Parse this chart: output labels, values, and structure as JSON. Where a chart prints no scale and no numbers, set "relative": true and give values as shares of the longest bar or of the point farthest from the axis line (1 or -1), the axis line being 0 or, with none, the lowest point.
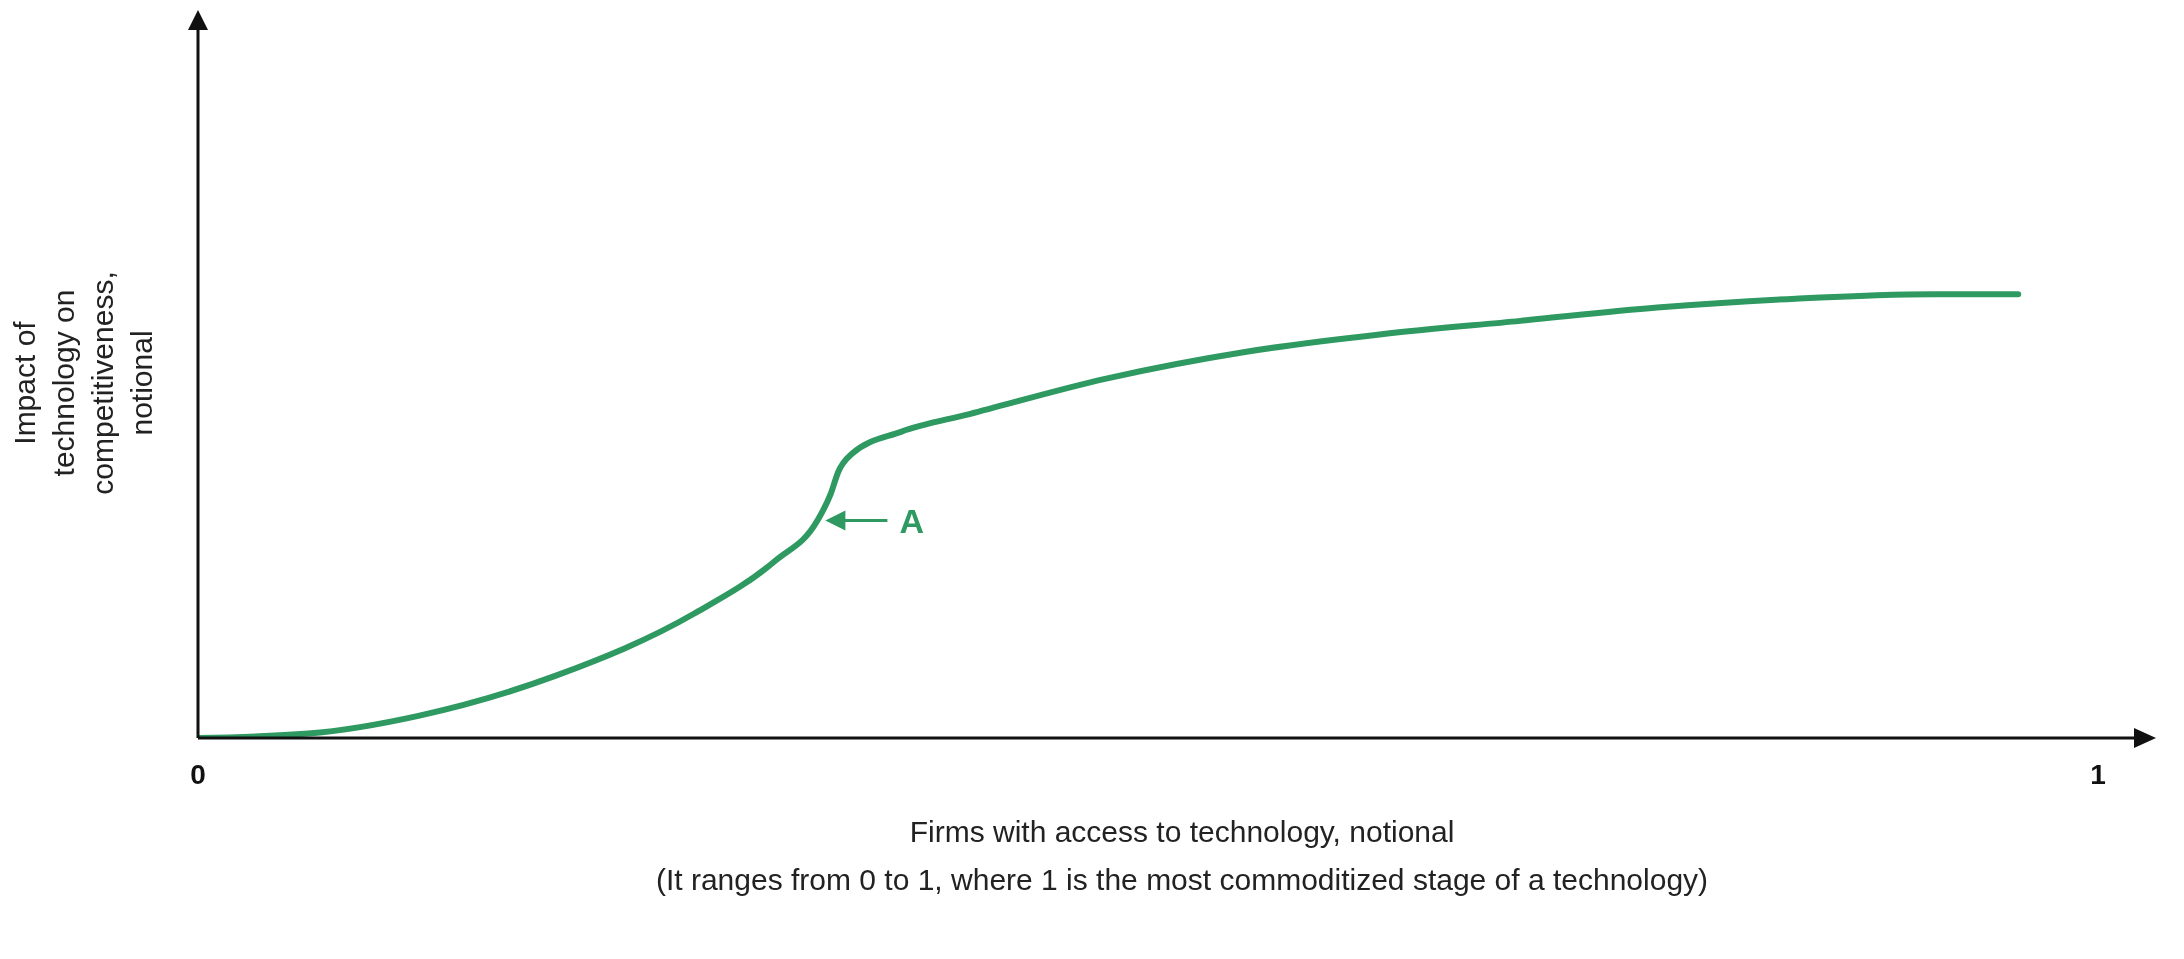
{
  "chart_data": {
    "type": "line",
    "relative": true,
    "xlabel": "Firms with access to technology, notional",
    "ylabel": "Impact of technology on competitiveness, notional",
    "annotations": [
      "(It ranges from 0 to 1, where 1 is the most commoditized stage of a technology)",
      {
        "text": "A",
        "x": 0.326,
        "y": 0.49
      }
    ],
    "x": [
      0,
      0.058,
      0.116,
      0.188,
      0.261,
      0.304,
      0.326,
      0.333,
      0.337,
      0.344,
      0.37,
      0.406,
      0.478,
      0.551,
      0.623,
      0.696,
      0.768,
      0.841,
      0.913,
      0.958
    ],
    "series": [
      {
        "color": "#2e9960",
        "values": [
          0,
          0.01,
          0.05,
          0.14,
          0.28,
          0.4,
          0.49,
          0.55,
          0.6,
          0.64,
          0.69,
          0.73,
          0.81,
          0.87,
          0.91,
          0.94,
          0.97,
          0.99,
          1.0,
          1.0
        ]
      }
    ],
    "xlim": [
      0,
      1.02
    ],
    "xticks": [
      0,
      1
    ]
  }
}
